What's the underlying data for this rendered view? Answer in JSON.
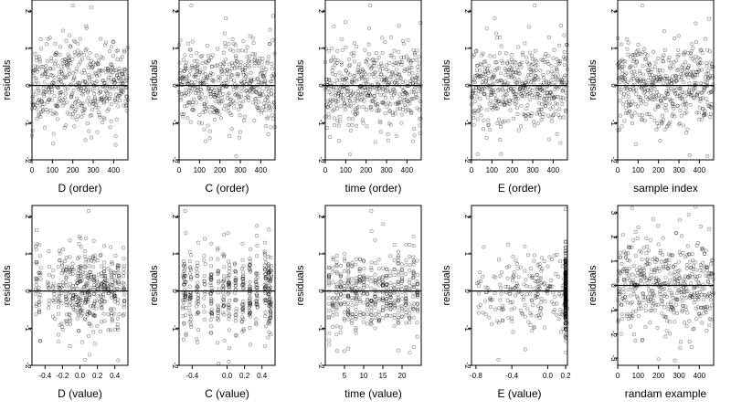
{
  "chart_data": [
    {
      "type": "scatter",
      "xlabel": "D (order)",
      "ylabel": "residuals",
      "xlim": [
        0,
        470
      ],
      "ylim": [
        -2,
        2.3
      ],
      "xticks": [
        0,
        100,
        200,
        300,
        400
      ],
      "yticks": [
        -2,
        -1,
        0,
        1,
        2
      ],
      "reference_line": 0,
      "points": {
        "kind": "index",
        "n": 470,
        "sd": 0.55,
        "seed": 11,
        "label_points": [
          [
            200,
            2.15
          ],
          [
            290,
            2.1
          ],
          [
            0,
            -1.35
          ],
          [
            410,
            -1.6
          ]
        ]
      }
    },
    {
      "type": "scatter",
      "xlabel": "C (order)",
      "ylabel": "residuals",
      "xlim": [
        0,
        470
      ],
      "ylim": [
        -2,
        2.3
      ],
      "xticks": [
        0,
        100,
        200,
        300,
        400
      ],
      "yticks": [
        -2,
        -1,
        0,
        1,
        2
      ],
      "reference_line": 0,
      "points": {
        "kind": "index",
        "n": 470,
        "sd": 0.55,
        "seed": 23,
        "label_points": [
          [
            60,
            2.15
          ],
          [
            130,
            -1.5
          ],
          [
            280,
            -1.9
          ]
        ]
      }
    },
    {
      "type": "scatter",
      "xlabel": "time (order)",
      "ylabel": "residuals",
      "xlim": [
        0,
        470
      ],
      "ylim": [
        -2,
        2.3
      ],
      "xticks": [
        0,
        100,
        200,
        300,
        400
      ],
      "yticks": [
        -2,
        -1,
        0,
        1,
        2
      ],
      "reference_line": 0,
      "points": {
        "kind": "index",
        "n": 470,
        "sd": 0.55,
        "seed": 37,
        "label_points": [
          [
            220,
            2.15
          ],
          [
            120,
            -1.85
          ],
          [
            430,
            -1.5
          ]
        ]
      }
    },
    {
      "type": "scatter",
      "xlabel": "E (order)",
      "ylabel": "residuals",
      "xlim": [
        0,
        470
      ],
      "ylim": [
        -2,
        2.3
      ],
      "xticks": [
        0,
        100,
        200,
        300,
        400
      ],
      "yticks": [
        -2,
        -1,
        0,
        1,
        2
      ],
      "reference_line": 0,
      "points": {
        "kind": "index",
        "n": 470,
        "sd": 0.55,
        "seed": 41,
        "label_points": [
          [
            310,
            2.15
          ],
          [
            30,
            -1.85
          ],
          [
            380,
            -1.45
          ]
        ]
      }
    },
    {
      "type": "scatter",
      "xlabel": "sample index",
      "ylabel": "residuals",
      "xlim": [
        0,
        470
      ],
      "ylim": [
        -2,
        2.3
      ],
      "xticks": [
        0,
        100,
        200,
        300,
        400
      ],
      "yticks": [
        -2,
        -1,
        0,
        1,
        2
      ],
      "reference_line": 0,
      "points": {
        "kind": "index",
        "n": 470,
        "sd": 0.55,
        "seed": 53,
        "label_points": [
          [
            120,
            2.15
          ],
          [
            440,
            -1.9
          ],
          [
            20,
            -1.1
          ]
        ]
      }
    },
    {
      "type": "scatter",
      "xlabel": "D (value)",
      "ylabel": "residuals",
      "xlim": [
        -0.55,
        0.55
      ],
      "ylim": [
        -2,
        2.3
      ],
      "xticks": [
        -0.4,
        -0.2,
        0.0,
        0.2,
        0.4
      ],
      "ytick_labels": [
        "-2",
        "-1",
        "0",
        "1",
        "2"
      ],
      "yticks": [
        -2,
        -1,
        0,
        1,
        2
      ],
      "reference_line": 0,
      "points": {
        "kind": "columns",
        "n": 470,
        "sd": 0.55,
        "seed": 61,
        "columns": [
          -0.5,
          -0.46,
          -0.36,
          -0.3,
          -0.24,
          -0.2,
          -0.16,
          -0.12,
          -0.08,
          -0.04,
          -0.02,
          0.0,
          0.02,
          0.06,
          0.08,
          0.1,
          0.12,
          0.16,
          0.2,
          0.24,
          0.28,
          0.32,
          0.36,
          0.4,
          0.44,
          0.5
        ],
        "jitter": 0.012,
        "label_points": [
          [
            0.1,
            2.15
          ],
          [
            0.06,
            -1.85
          ],
          [
            -0.46,
            -1.35
          ]
        ]
      }
    },
    {
      "type": "scatter",
      "xlabel": "C (value)",
      "ylabel": "residuals",
      "xlim": [
        -0.55,
        0.55
      ],
      "ylim": [
        -2,
        2.3
      ],
      "xticks": [
        -0.4,
        0.0,
        0.2,
        0.4
      ],
      "yticks": [
        -2,
        -1,
        0,
        1,
        2
      ],
      "reference_line": 0,
      "points": {
        "kind": "columns",
        "n": 470,
        "sd": 0.55,
        "seed": 67,
        "columns": [
          -0.5,
          -0.48,
          -0.42,
          -0.34,
          -0.26,
          -0.18,
          -0.1,
          -0.04,
          0.02,
          0.1,
          0.18,
          0.26,
          0.34,
          0.44,
          0.48,
          0.5
        ],
        "jitter": 0.01,
        "label_points": [
          [
            -0.48,
            2.15
          ],
          [
            0.02,
            -1.9
          ],
          [
            0.48,
            1.65
          ]
        ]
      }
    },
    {
      "type": "scatter",
      "xlabel": "time (value)",
      "ylabel": "residuals",
      "xlim": [
        0,
        25
      ],
      "ylim": [
        -2,
        2.3
      ],
      "xticks": [
        5,
        10,
        15,
        20
      ],
      "yticks": [
        -2,
        -1,
        0,
        1,
        2
      ],
      "reference_line": 0,
      "points": {
        "kind": "columns",
        "n": 470,
        "sd": 0.55,
        "seed": 71,
        "columns": [
          1,
          2,
          3,
          4,
          5,
          6,
          7,
          8,
          9,
          10,
          11,
          12,
          13,
          14,
          15,
          16,
          17,
          18,
          19,
          20,
          21,
          22,
          23,
          24
        ],
        "jitter": 0.08,
        "label_points": [
          [
            12,
            2.15
          ],
          [
            6,
            -1.55
          ],
          [
            19,
            -1.6
          ]
        ]
      }
    },
    {
      "type": "scatter",
      "xlabel": "E (value)",
      "ylabel": "residuals",
      "xlim": [
        -0.85,
        0.22
      ],
      "ylim": [
        -2,
        2.3
      ],
      "xticks": [
        -0.8,
        -0.4,
        0.0,
        0.2
      ],
      "yticks": [
        -2,
        -1,
        0,
        1,
        2
      ],
      "reference_line": 0,
      "points": {
        "kind": "skewed",
        "n": 470,
        "sd": 0.55,
        "seed": 83,
        "dense_at": 0.2,
        "dense_frac": 0.55,
        "label_points": [
          [
            0.2,
            2.2
          ],
          [
            -0.55,
            -1.85
          ],
          [
            0.2,
            -1.65
          ]
        ]
      }
    },
    {
      "type": "scatter",
      "xlabel": "randam example",
      "ylabel": "residuals",
      "xlim": [
        0,
        470
      ],
      "ylim": [
        -3.3,
        3.3
      ],
      "xticks": [
        0,
        100,
        200,
        300,
        400
      ],
      "yticks": [
        -3,
        -2,
        -1,
        0,
        1,
        2,
        3
      ],
      "reference_line": 0,
      "points": {
        "kind": "index",
        "n": 470,
        "sd": 1.0,
        "seed": 97,
        "label_points": [
          [
            70,
            3.2
          ],
          [
            280,
            -3.1
          ],
          [
            200,
            -3.05
          ]
        ]
      }
    }
  ]
}
